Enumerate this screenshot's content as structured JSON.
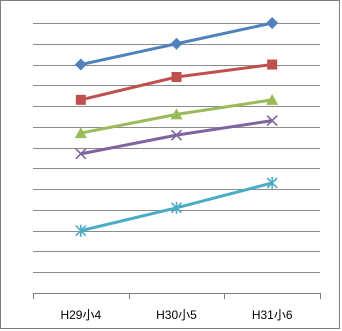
{
  "chart_data": {
    "type": "line",
    "categories": [
      "H29小4",
      "H30小5",
      "H31小6"
    ],
    "ylim": [
      0,
      13
    ],
    "grid": true,
    "legend": "none",
    "series": [
      {
        "values": [
          11.0,
          12.0,
          13.0
        ],
        "color": "#4f81bd",
        "marker": "diamond"
      },
      {
        "values": [
          9.3,
          10.4,
          11.0
        ],
        "color": "#c0504d",
        "marker": "square"
      },
      {
        "values": [
          7.7,
          8.6,
          9.3
        ],
        "color": "#9bbb59",
        "marker": "triangle"
      },
      {
        "values": [
          6.7,
          7.6,
          8.3
        ],
        "color": "#8064a2",
        "marker": "x"
      },
      {
        "values": [
          3.0,
          4.1,
          5.3
        ],
        "color": "#4bacc6",
        "marker": "star"
      }
    ]
  }
}
